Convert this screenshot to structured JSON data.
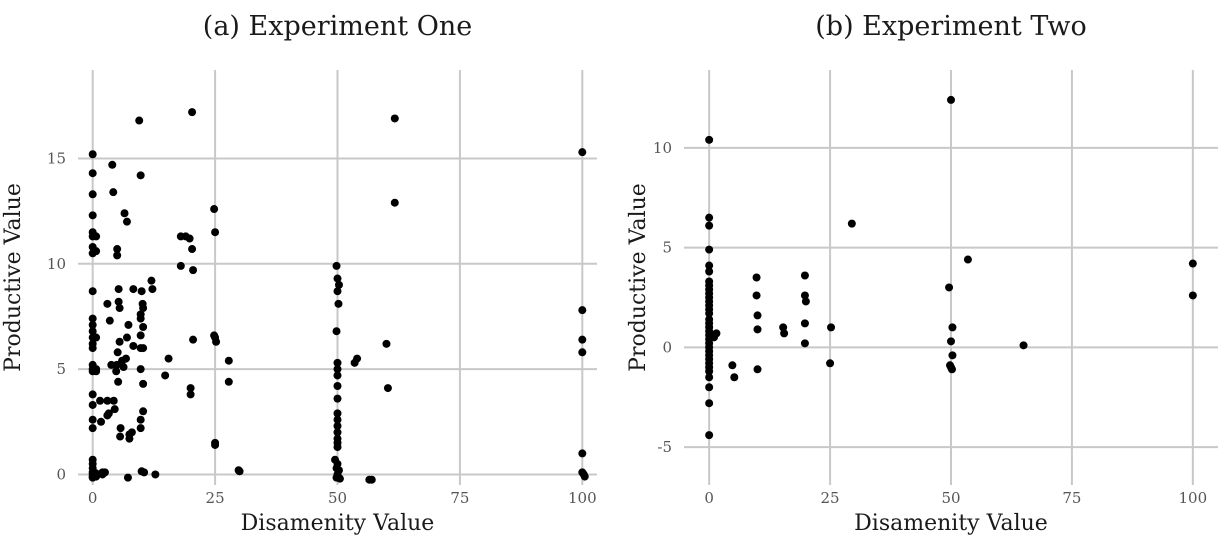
{
  "chart_data": [
    {
      "type": "scatter",
      "title": "(a) Experiment One",
      "xlabel": "Disamenity Value",
      "ylabel": "Productive Value",
      "xlim": [
        -3,
        103
      ],
      "ylim": [
        -0.5,
        19.2
      ],
      "xticks": [
        0,
        25,
        50,
        75,
        100
      ],
      "yticks": [
        0,
        5,
        10,
        15
      ],
      "ytick_labels": [
        "0",
        "5",
        "10",
        "15"
      ],
      "grid": true,
      "points": [
        [
          0,
          15.2
        ],
        [
          0,
          14.3
        ],
        [
          0,
          13.3
        ],
        [
          0,
          12.3
        ],
        [
          0,
          11.5
        ],
        [
          0,
          11.3
        ],
        [
          0,
          10.8
        ],
        [
          0,
          10.5
        ],
        [
          0,
          8.7
        ],
        [
          0,
          7.4
        ],
        [
          0,
          7.1
        ],
        [
          0,
          6.8
        ],
        [
          0,
          6.5
        ],
        [
          0,
          6.2
        ],
        [
          0,
          6.0
        ],
        [
          0,
          5.2
        ],
        [
          0,
          5.0
        ],
        [
          0,
          4.9
        ],
        [
          0,
          3.8
        ],
        [
          0,
          3.3
        ],
        [
          0,
          2.6
        ],
        [
          0,
          2.2
        ],
        [
          0,
          0.7
        ],
        [
          0,
          0.5
        ],
        [
          0,
          0.3
        ],
        [
          0,
          0.1
        ],
        [
          0,
          0.0
        ],
        [
          0,
          -0.1
        ],
        [
          0,
          -0.15
        ],
        [
          0.7,
          11.3
        ],
        [
          0.7,
          10.6
        ],
        [
          0.7,
          6.5
        ],
        [
          0.7,
          5.0
        ],
        [
          0.7,
          4.9
        ],
        [
          0.7,
          0.05
        ],
        [
          0.7,
          -0.1
        ],
        [
          1.5,
          3.5
        ],
        [
          1.7,
          2.5
        ],
        [
          2.0,
          0.1
        ],
        [
          2.0,
          0.0
        ],
        [
          2.5,
          0.1
        ],
        [
          3.0,
          8.1
        ],
        [
          3.0,
          3.5
        ],
        [
          3.0,
          2.8
        ],
        [
          3.3,
          2.9
        ],
        [
          3.5,
          7.3
        ],
        [
          3.8,
          5.2
        ],
        [
          4.0,
          14.7
        ],
        [
          4.2,
          13.4
        ],
        [
          4.3,
          3.5
        ],
        [
          4.5,
          3.1
        ],
        [
          4.8,
          4.9
        ],
        [
          4.9,
          5.2
        ],
        [
          5.0,
          10.7
        ],
        [
          5.0,
          10.4
        ],
        [
          5.1,
          5.8
        ],
        [
          5.2,
          4.4
        ],
        [
          5.3,
          8.8
        ],
        [
          5.3,
          8.2
        ],
        [
          5.5,
          7.9
        ],
        [
          5.5,
          6.3
        ],
        [
          5.6,
          1.8
        ],
        [
          5.7,
          2.2
        ],
        [
          6.0,
          5.4
        ],
        [
          6.3,
          5.1
        ],
        [
          6.5,
          12.4
        ],
        [
          6.8,
          5.5
        ],
        [
          7.0,
          12.0
        ],
        [
          7.0,
          6.5
        ],
        [
          7.3,
          7.1
        ],
        [
          7.5,
          1.9
        ],
        [
          7.5,
          1.7
        ],
        [
          7.2,
          -0.15
        ],
        [
          8.0,
          2.0
        ],
        [
          8.3,
          8.8
        ],
        [
          8.3,
          6.1
        ],
        [
          9.5,
          16.8
        ],
        [
          9.8,
          14.2
        ],
        [
          9.8,
          7.6
        ],
        [
          9.8,
          7.4
        ],
        [
          9.8,
          6.6
        ],
        [
          9.8,
          6.0
        ],
        [
          9.8,
          5.0
        ],
        [
          9.8,
          2.6
        ],
        [
          9.8,
          2.2
        ],
        [
          10.0,
          8.7
        ],
        [
          10.2,
          8.1
        ],
        [
          10.3,
          7.9
        ],
        [
          10.3,
          7.0
        ],
        [
          10.3,
          6.0
        ],
        [
          10.3,
          4.3
        ],
        [
          10.3,
          3.0
        ],
        [
          10.0,
          0.15
        ],
        [
          10.5,
          0.1
        ],
        [
          12.0,
          9.2
        ],
        [
          12.2,
          8.8
        ],
        [
          12.8,
          0.0
        ],
        [
          14.8,
          4.7
        ],
        [
          15.5,
          5.5
        ],
        [
          18.0,
          11.3
        ],
        [
          18.0,
          9.9
        ],
        [
          19.0,
          11.3
        ],
        [
          19.8,
          11.2
        ],
        [
          20.0,
          4.1
        ],
        [
          20.0,
          3.8
        ],
        [
          20.3,
          17.2
        ],
        [
          20.3,
          10.7
        ],
        [
          20.5,
          9.7
        ],
        [
          20.5,
          6.4
        ],
        [
          24.8,
          12.6
        ],
        [
          25.0,
          11.5
        ],
        [
          24.8,
          6.6
        ],
        [
          25.0,
          6.5
        ],
        [
          25.2,
          6.3
        ],
        [
          25.0,
          1.5
        ],
        [
          25.0,
          1.4
        ],
        [
          27.8,
          5.4
        ],
        [
          27.8,
          4.4
        ],
        [
          29.8,
          0.2
        ],
        [
          30.0,
          0.15
        ],
        [
          49.8,
          9.9
        ],
        [
          50.0,
          9.3
        ],
        [
          50.3,
          9.0
        ],
        [
          50.0,
          8.7
        ],
        [
          50.2,
          8.1
        ],
        [
          49.8,
          6.8
        ],
        [
          50.0,
          5.3
        ],
        [
          50.0,
          5.0
        ],
        [
          50.0,
          4.7
        ],
        [
          50.0,
          4.2
        ],
        [
          50.0,
          3.6
        ],
        [
          50.0,
          2.9
        ],
        [
          50.0,
          2.6
        ],
        [
          50.0,
          2.3
        ],
        [
          50.0,
          2.0
        ],
        [
          50.0,
          1.7
        ],
        [
          50.0,
          1.5
        ],
        [
          50.0,
          1.3
        ],
        [
          49.5,
          0.7
        ],
        [
          50.0,
          0.5
        ],
        [
          49.8,
          0.3
        ],
        [
          50.3,
          0.2
        ],
        [
          50.0,
          0.0
        ],
        [
          50.0,
          -0.1
        ],
        [
          49.8,
          -0.15
        ],
        [
          50.5,
          -0.2
        ],
        [
          53.5,
          5.3
        ],
        [
          54.0,
          5.5
        ],
        [
          56.5,
          -0.25
        ],
        [
          57.0,
          -0.25
        ],
        [
          60.0,
          6.2
        ],
        [
          60.3,
          4.1
        ],
        [
          61.7,
          16.9
        ],
        [
          61.7,
          12.9
        ],
        [
          100,
          15.3
        ],
        [
          100,
          7.8
        ],
        [
          100,
          6.4
        ],
        [
          100,
          5.8
        ],
        [
          100,
          1.0
        ],
        [
          100,
          0.1
        ],
        [
          100.3,
          0.0
        ],
        [
          100.5,
          -0.1
        ]
      ]
    },
    {
      "type": "scatter",
      "title": "(b) Experiment Two",
      "xlabel": "Disamenity Value",
      "ylabel": "Productive Value",
      "xlim": [
        -5.2,
        105.2
      ],
      "ylim": [
        -6.9,
        13.9
      ],
      "xticks": [
        0,
        25,
        50,
        75,
        100
      ],
      "yticks": [
        -5,
        0,
        5,
        10
      ],
      "ytick_labels": [
        "-5",
        "0",
        "5",
        "10"
      ],
      "grid": true,
      "points": [
        [
          0,
          10.4
        ],
        [
          0,
          6.5
        ],
        [
          0,
          6.1
        ],
        [
          0,
          4.9
        ],
        [
          0,
          4.1
        ],
        [
          0,
          3.8
        ],
        [
          0,
          3.3
        ],
        [
          0,
          3.1
        ],
        [
          0,
          2.9
        ],
        [
          0,
          2.7
        ],
        [
          0,
          2.5
        ],
        [
          0,
          2.3
        ],
        [
          0,
          2.1
        ],
        [
          0,
          1.9
        ],
        [
          0,
          1.7
        ],
        [
          0,
          1.4
        ],
        [
          0,
          1.2
        ],
        [
          0,
          1.0
        ],
        [
          0,
          0.8
        ],
        [
          0,
          0.6
        ],
        [
          0,
          0.4
        ],
        [
          0,
          0.2
        ],
        [
          0,
          0.0
        ],
        [
          0,
          -0.2
        ],
        [
          0,
          -0.4
        ],
        [
          0,
          -0.6
        ],
        [
          0,
          -0.8
        ],
        [
          0,
          -1.0
        ],
        [
          0,
          -1.2
        ],
        [
          0,
          -1.5
        ],
        [
          0,
          -2.0
        ],
        [
          0,
          -2.8
        ],
        [
          0,
          -4.4
        ],
        [
          1.0,
          0.5
        ],
        [
          1.5,
          0.7
        ],
        [
          4.8,
          -0.9
        ],
        [
          5.2,
          -1.5
        ],
        [
          9.8,
          3.5
        ],
        [
          9.8,
          2.6
        ],
        [
          10.0,
          1.6
        ],
        [
          10.0,
          0.9
        ],
        [
          10.0,
          -1.1
        ],
        [
          15.3,
          1.0
        ],
        [
          15.5,
          0.7
        ],
        [
          19.8,
          3.6
        ],
        [
          19.8,
          2.6
        ],
        [
          20.0,
          2.3
        ],
        [
          19.8,
          1.2
        ],
        [
          19.8,
          0.2
        ],
        [
          25.2,
          1.0
        ],
        [
          25.0,
          -0.8
        ],
        [
          29.5,
          6.2
        ],
        [
          49.6,
          3.0
        ],
        [
          50.0,
          0.3
        ],
        [
          50.3,
          1.0
        ],
        [
          50.3,
          -0.4
        ],
        [
          49.8,
          -0.9
        ],
        [
          50.0,
          -1.0
        ],
        [
          50.2,
          -1.1
        ],
        [
          50.0,
          12.4
        ],
        [
          53.5,
          4.4
        ],
        [
          65.0,
          0.1
        ],
        [
          100,
          4.2
        ],
        [
          100,
          2.6
        ]
      ]
    }
  ]
}
